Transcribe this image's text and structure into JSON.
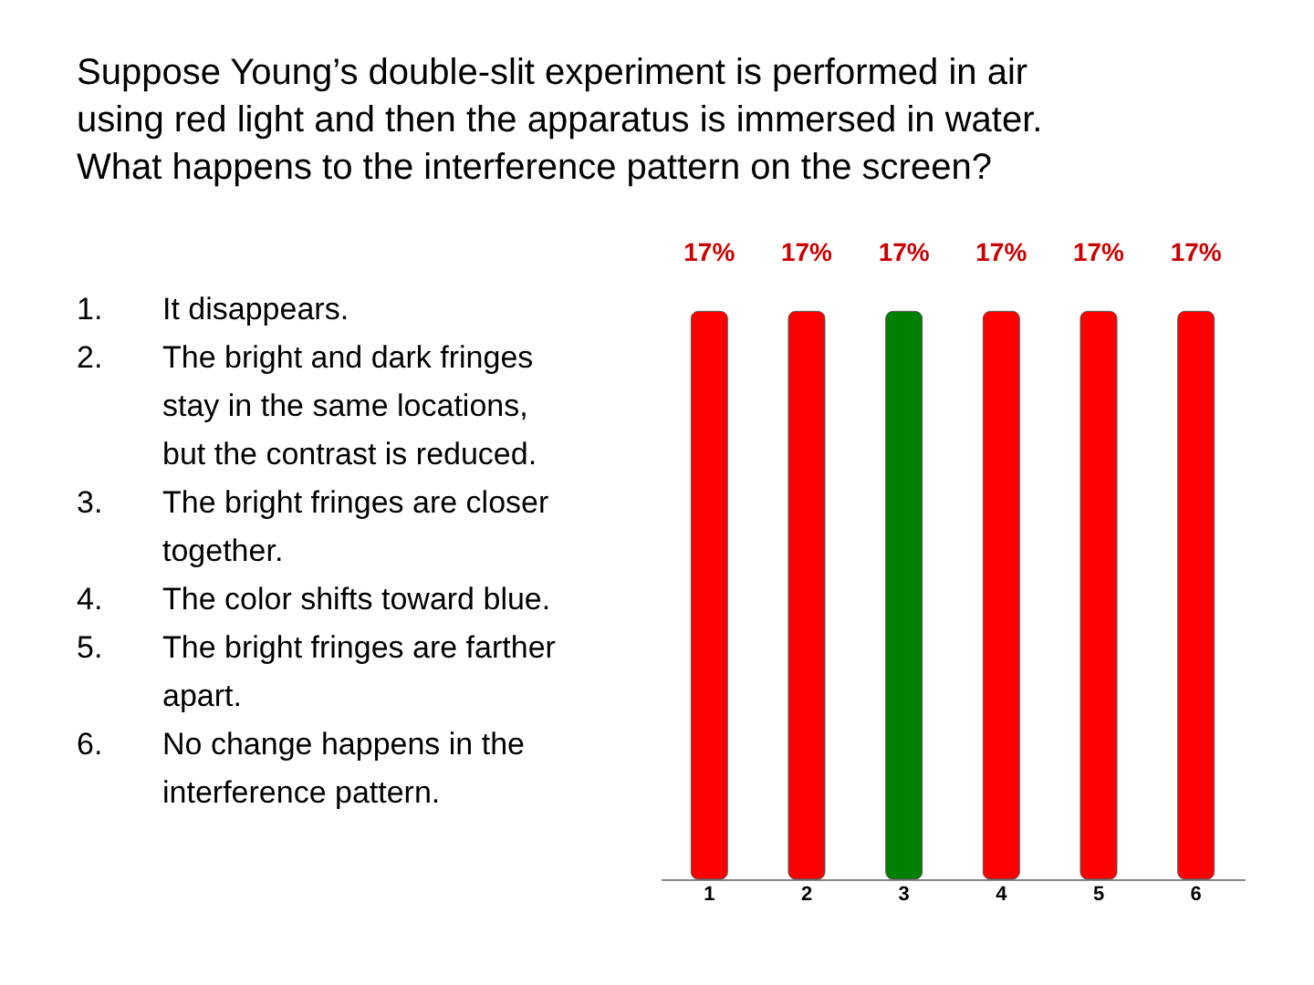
{
  "chart_data": {
    "type": "bar",
    "title": "Suppose Young’s double-slit experiment is performed in air using red light and then the apparatus is immersed in water. What happens to the interference pattern on the screen?",
    "annotations": [
      "1. It disappears.",
      "2. The bright and dark fringes stay in the same locations, but the contrast is reduced.",
      "3. The bright fringes are closer together.",
      "4. The color shifts toward blue.",
      "5. The bright fringes are farther apart.",
      "6. No change happens in the interference pattern."
    ],
    "categories": [
      "1",
      "2",
      "3",
      "4",
      "5",
      "6"
    ],
    "values": [
      17,
      17,
      17,
      17,
      17,
      17
    ],
    "value_labels": [
      "17%",
      "17%",
      "17%",
      "17%",
      "17%",
      "17%"
    ],
    "colors": [
      "#ff0000",
      "#ff0000",
      "#008000",
      "#ff0000",
      "#ff0000",
      "#ff0000"
    ],
    "tick_labels": "x",
    "grid": false
  }
}
